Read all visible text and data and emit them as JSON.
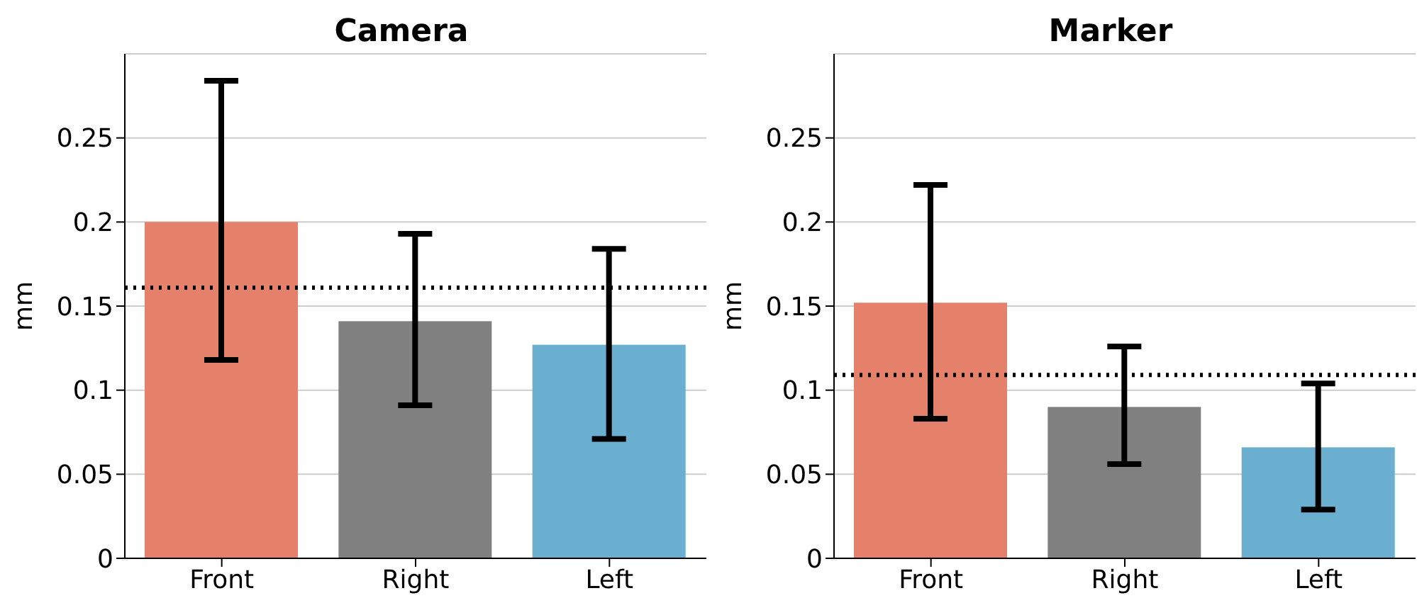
{
  "chart_data": [
    {
      "type": "bar",
      "title": "Camera",
      "ylabel": "mm",
      "categories": [
        "Front",
        "Right",
        "Left"
      ],
      "values": [
        0.2,
        0.141,
        0.127
      ],
      "colors": [
        "#e5816a",
        "#808080",
        "#6aaed0"
      ],
      "errors": [
        [
          0.118,
          0.284
        ],
        [
          0.091,
          0.193
        ],
        [
          0.071,
          0.184
        ]
      ],
      "ylim": [
        0,
        0.3
      ],
      "yticks": [
        0,
        0.05,
        0.1,
        0.15,
        0.2,
        0.25
      ],
      "grid": "y",
      "legend": false,
      "ref_lines": [
        {
          "axis": "y",
          "value": 0.161,
          "color": "#000000",
          "line_style": "dotted"
        }
      ]
    },
    {
      "type": "bar",
      "title": "Marker",
      "ylabel": "mm",
      "categories": [
        "Front",
        "Right",
        "Left"
      ],
      "values": [
        0.152,
        0.09,
        0.066
      ],
      "colors": [
        "#e5816a",
        "#808080",
        "#6aaed0"
      ],
      "errors": [
        [
          0.083,
          0.222
        ],
        [
          0.056,
          0.126
        ],
        [
          0.029,
          0.104
        ]
      ],
      "ylim": [
        0,
        0.3
      ],
      "yticks": [
        0,
        0.05,
        0.1,
        0.15,
        0.2,
        0.25
      ],
      "grid": "y",
      "legend": false,
      "ref_lines": [
        {
          "axis": "y",
          "value": 0.109,
          "color": "#000000",
          "line_style": "dotted"
        }
      ]
    }
  ]
}
